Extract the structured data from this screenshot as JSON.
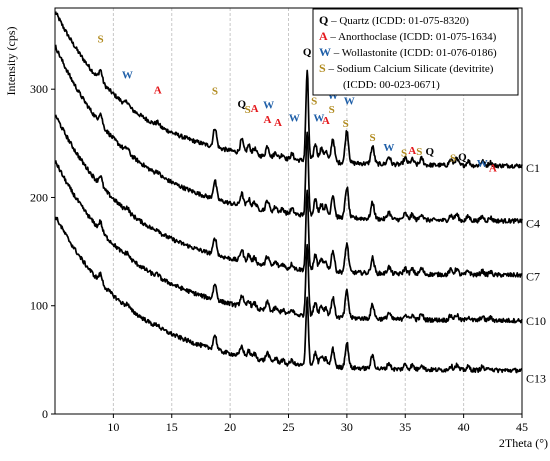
{
  "chart_data": {
    "type": "line",
    "title": "",
    "xlabel": "2Theta (°)",
    "ylabel": "Intensity (cps)",
    "xlim": [
      5,
      45
    ],
    "ylim": [
      0,
      375
    ],
    "x_ticks": [
      10,
      15,
      20,
      25,
      30,
      35,
      40,
      45
    ],
    "y_ticks": [
      0,
      100,
      200,
      300
    ],
    "grid": "vertical dashed",
    "legend_position": "top-right",
    "series": [
      {
        "name": "C1",
        "background": [
          370,
          241,
          229
        ],
        "end_value": 227
      },
      {
        "name": "C4",
        "background": [
          335,
          199,
          178
        ],
        "end_value": 176
      },
      {
        "name": "C7",
        "background": [
          270,
          152,
          128
        ],
        "end_value": 127
      },
      {
        "name": "C10",
        "background": [
          225,
          115,
          86
        ],
        "end_value": 86
      },
      {
        "name": "C13",
        "background": [
          172,
          75,
          40
        ],
        "end_value": 33
      }
    ],
    "peaks": [
      {
        "x": 8.9,
        "h": 10
      },
      {
        "x": 11.2,
        "h": 4
      },
      {
        "x": 13.8,
        "h": 3
      },
      {
        "x": 18.7,
        "h": 18
      },
      {
        "x": 21.0,
        "h": 12
      },
      {
        "x": 21.6,
        "h": 8
      },
      {
        "x": 22.1,
        "h": 6
      },
      {
        "x": 23.2,
        "h": 10
      },
      {
        "x": 23.9,
        "h": 5
      },
      {
        "x": 24.5,
        "h": 4
      },
      {
        "x": 25.3,
        "h": 5
      },
      {
        "x": 26.6,
        "h": 82
      },
      {
        "x": 27.3,
        "h": 16
      },
      {
        "x": 27.8,
        "h": 12
      },
      {
        "x": 28.2,
        "h": 10
      },
      {
        "x": 28.8,
        "h": 22
      },
      {
        "x": 30.0,
        "h": 30
      },
      {
        "x": 32.2,
        "h": 16
      },
      {
        "x": 33.6,
        "h": 7
      },
      {
        "x": 35.0,
        "h": 6
      },
      {
        "x": 35.6,
        "h": 5
      },
      {
        "x": 36.4,
        "h": 6
      },
      {
        "x": 38.9,
        "h": 5
      },
      {
        "x": 39.4,
        "h": 6
      },
      {
        "x": 40.4,
        "h": 4
      },
      {
        "x": 41.6,
        "h": 4
      },
      {
        "x": 42.3,
        "h": 3
      }
    ],
    "peak_annotations": [
      {
        "letter": "S",
        "x": 8.9,
        "y": 343
      },
      {
        "letter": "W",
        "x": 11.2,
        "y": 310
      },
      {
        "letter": "A",
        "x": 13.8,
        "y": 296
      },
      {
        "letter": "S",
        "x": 18.7,
        "y": 295
      },
      {
        "letter": "Q",
        "x": 21.0,
        "y": 283
      },
      {
        "letter": "S",
        "x": 21.5,
        "y": 278
      },
      {
        "letter": "A",
        "x": 22.1,
        "y": 279
      },
      {
        "letter": "W",
        "x": 23.3,
        "y": 282
      },
      {
        "letter": "A",
        "x": 23.2,
        "y": 269
      },
      {
        "letter": "A",
        "x": 24.1,
        "y": 266
      },
      {
        "letter": "W",
        "x": 25.5,
        "y": 270
      },
      {
        "letter": "Q",
        "x": 26.6,
        "y": 331
      },
      {
        "letter": "S",
        "x": 27.2,
        "y": 286
      },
      {
        "letter": "W",
        "x": 27.6,
        "y": 270
      },
      {
        "letter": "A",
        "x": 28.2,
        "y": 268
      },
      {
        "letter": "W",
        "x": 28.8,
        "y": 291
      },
      {
        "letter": "S",
        "x": 28.7,
        "y": 278
      },
      {
        "letter": "S",
        "x": 29.9,
        "y": 265
      },
      {
        "letter": "W",
        "x": 30.2,
        "y": 286
      },
      {
        "letter": "S",
        "x": 32.2,
        "y": 252
      },
      {
        "letter": "W",
        "x": 33.6,
        "y": 243
      },
      {
        "letter": "S",
        "x": 34.9,
        "y": 238
      },
      {
        "letter": "A",
        "x": 35.6,
        "y": 240
      },
      {
        "letter": "S",
        "x": 36.2,
        "y": 239
      },
      {
        "letter": "Q",
        "x": 37.1,
        "y": 239
      },
      {
        "letter": "S",
        "x": 39.1,
        "y": 233
      },
      {
        "letter": "Q",
        "x": 39.9,
        "y": 234
      },
      {
        "letter": "W",
        "x": 41.6,
        "y": 228
      },
      {
        "letter": "A",
        "x": 42.5,
        "y": 224
      }
    ],
    "phase_colors": {
      "Q": "#000000",
      "A": "#e4181c",
      "W": "#1f5fa8",
      "S": "#b08a1e"
    },
    "legend": [
      {
        "letter": "Q",
        "text": " – Quartz (ICDD: 01-075-8320)"
      },
      {
        "letter": "A",
        "text": " – Anorthoclase (ICDD: 01-075-1634)"
      },
      {
        "letter": "W",
        "text": " – Wollastonite (ICDD: 01-076-0186)"
      },
      {
        "letter": "S",
        "text": " – Sodium Calcium Silicate (devitrite)"
      },
      {
        "letter": "",
        "text": "(ICDD: 00-023-0671)"
      }
    ]
  }
}
